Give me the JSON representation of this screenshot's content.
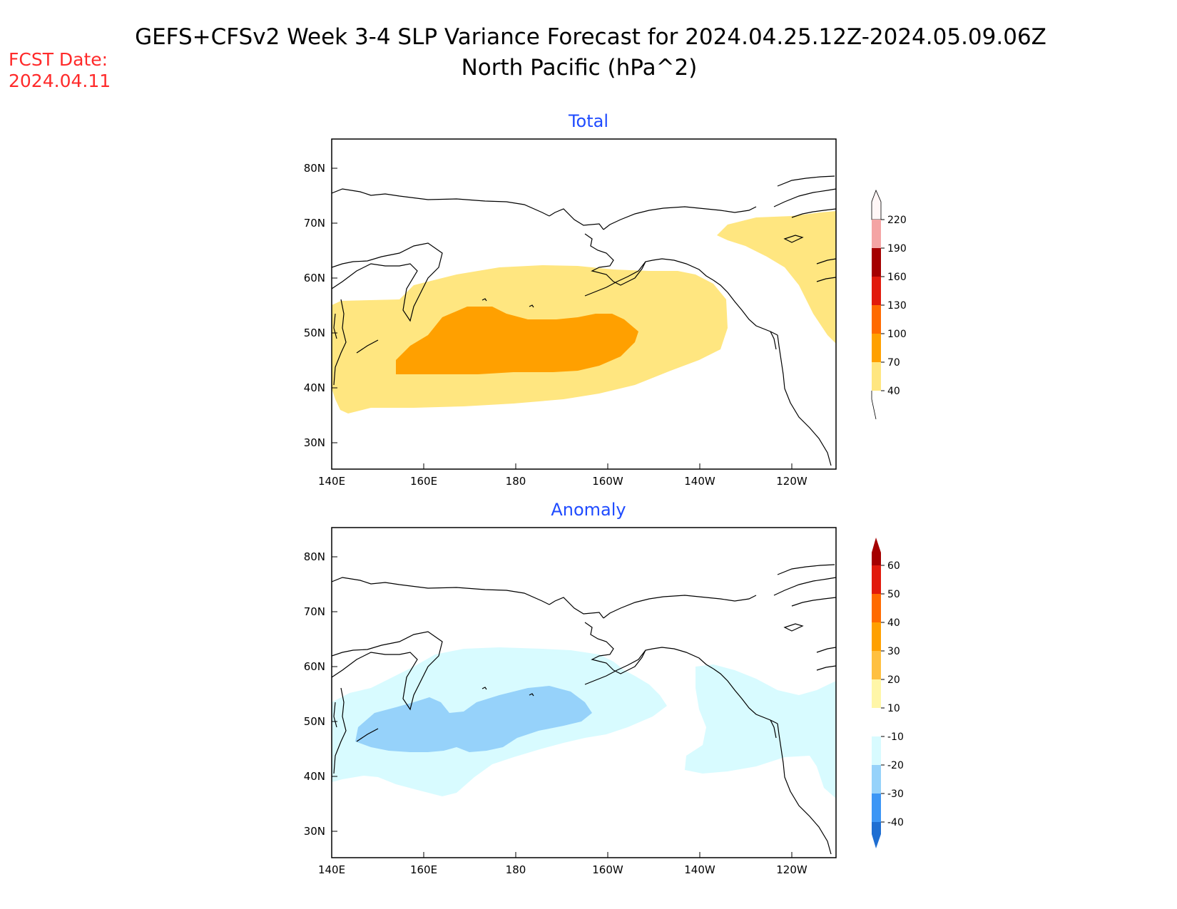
{
  "title_line1": "GEFS+CFSv2 Week 3-4 SLP Variance Forecast for 2024.04.25.12Z-2024.05.09.06Z",
  "title_line2": "North Pacific (hPa^2)",
  "fcst_label": "FCST Date:",
  "fcst_date": "2024.04.11",
  "colors": {
    "title": "#000000",
    "fcst": "#ff2a2a",
    "panel_title": "#1f4bff",
    "coast": "#000000"
  },
  "axes": {
    "lat_labels": [
      "80N",
      "70N",
      "60N",
      "50N",
      "40N",
      "30N"
    ],
    "lon_labels": [
      "140E",
      "160E",
      "180",
      "160W",
      "140W",
      "120W"
    ]
  },
  "panels": [
    {
      "title": "Total",
      "colorbar": {
        "labels": [
          "220",
          "190",
          "160",
          "130",
          "100",
          "70",
          "40"
        ],
        "colors": [
          "#f6dcdc",
          "#f4a4a4",
          "#a50000",
          "#e11a0c",
          "#ff6a00",
          "#ffa000",
          "#ffe680"
        ]
      },
      "regions": [
        {
          "level": "40-70",
          "color": "#ffe680"
        },
        {
          "level": "70-100",
          "color": "#ffa000"
        }
      ]
    },
    {
      "title": "Anomaly",
      "colorbar": {
        "labels": [
          "60",
          "50",
          "40",
          "30",
          "20",
          "10",
          "-10",
          "-20",
          "-30",
          "-40"
        ],
        "colors": [
          "#a50000",
          "#e11a0c",
          "#ff6a00",
          "#ffa000",
          "#ffc040",
          "#fff6a8",
          "#ffffff",
          "#d8fbff",
          "#96d2fa",
          "#3c96f5",
          "#1e6ed2"
        ]
      },
      "regions": [
        {
          "level": "-20 to -10",
          "color": "#d8fbff"
        },
        {
          "level": "-30 to -20",
          "color": "#96d2fa"
        }
      ]
    }
  ]
}
